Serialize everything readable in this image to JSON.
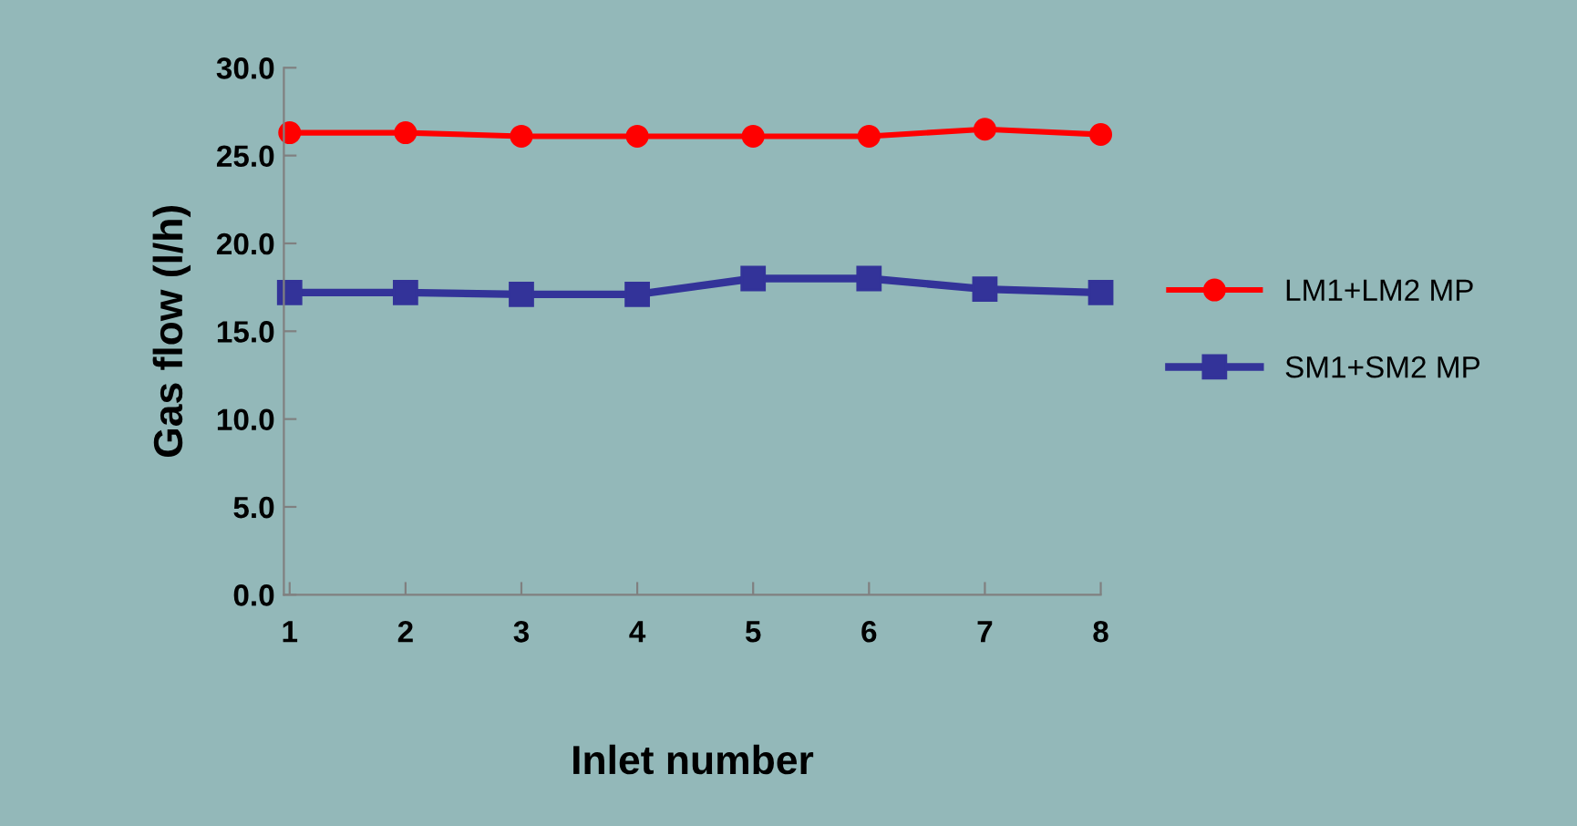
{
  "chart_data": {
    "type": "line",
    "xlabel": "Inlet number",
    "ylabel": "Gas flow (l/h)",
    "categories": [
      "1",
      "2",
      "3",
      "4",
      "5",
      "6",
      "7",
      "8"
    ],
    "series": [
      {
        "name": "LM1+LM2 MP",
        "color": "#ff0000",
        "marker": "circle",
        "values": [
          26.3,
          26.3,
          26.1,
          26.1,
          26.1,
          26.1,
          26.5,
          26.2
        ]
      },
      {
        "name": "SM1+SM2 MP",
        "color": "#333399",
        "marker": "square",
        "values": [
          17.2,
          17.2,
          17.1,
          17.1,
          18.0,
          18.0,
          17.4,
          17.2
        ]
      }
    ],
    "ylim": [
      0,
      30
    ],
    "yticks": [
      {
        "value": 0,
        "label": "0.0"
      },
      {
        "value": 5,
        "label": "5.0"
      },
      {
        "value": 10,
        "label": "10.0"
      },
      {
        "value": 15,
        "label": "15.0"
      },
      {
        "value": 20,
        "label": "20.0"
      },
      {
        "value": 25,
        "label": "25.0"
      },
      {
        "value": 30,
        "label": "30.0"
      }
    ],
    "grid": false,
    "legend": "right",
    "line_style": "solid"
  }
}
